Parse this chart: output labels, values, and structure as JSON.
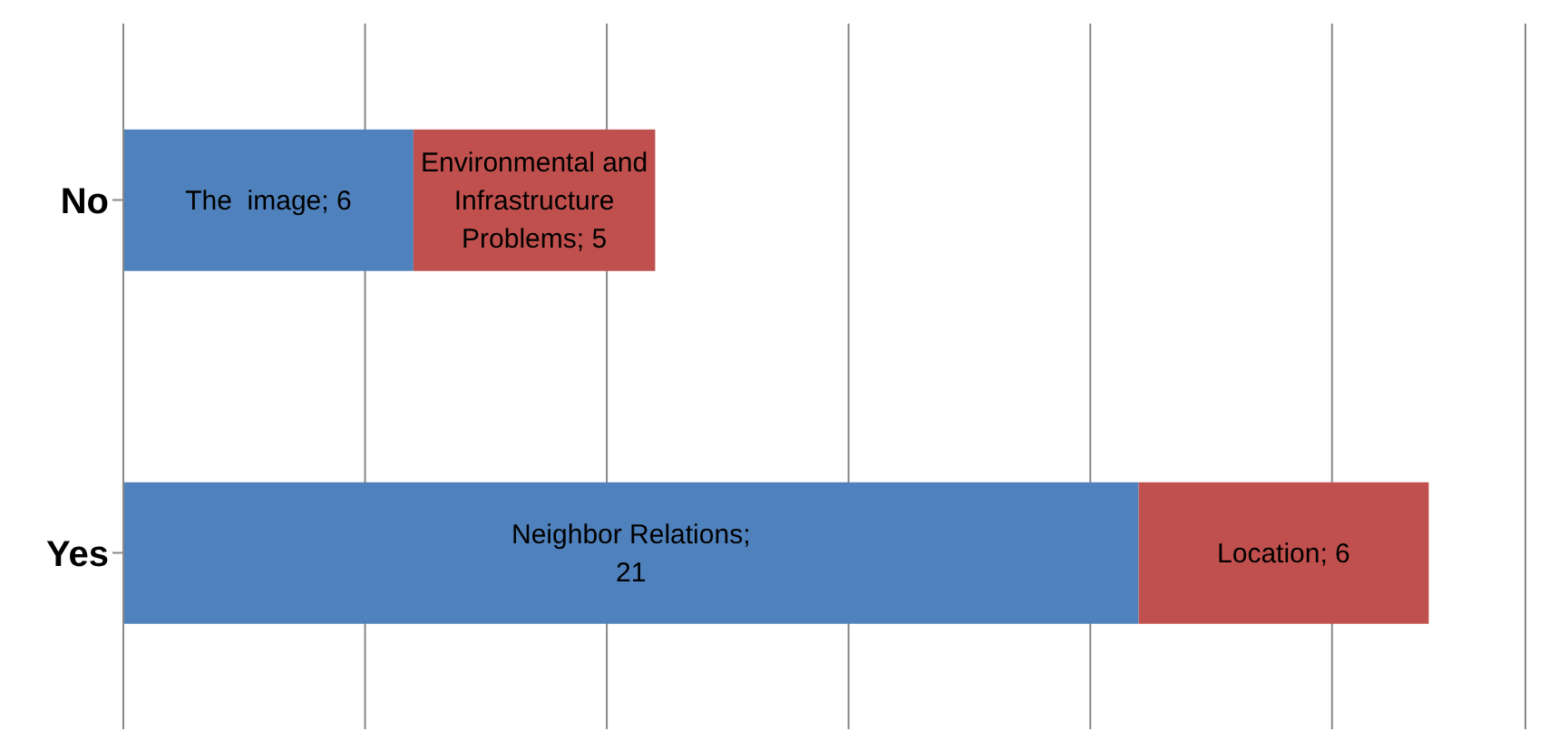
{
  "chart_data": {
    "type": "bar",
    "orientation": "horizontal",
    "stacked": true,
    "categories": [
      "No",
      "Yes"
    ],
    "series": [
      {
        "color": "#4f81bd",
        "values": [
          6,
          21
        ],
        "value_labels": [
          "The  image; 6",
          "Neighbor Relations; 21"
        ]
      },
      {
        "color": "#c0504d",
        "values": [
          5,
          6
        ],
        "value_labels": [
          "Environmental and Infrastructure Problems; 5",
          "Location; 6"
        ]
      }
    ],
    "xlim": [
      0,
      29
    ],
    "xticks": [
      {
        "value": 0,
        "label": null
      },
      {
        "value": 5,
        "label": null
      },
      {
        "value": 10,
        "label": null
      },
      {
        "value": 15,
        "label": null
      },
      {
        "value": 20,
        "label": null
      },
      {
        "value": 25,
        "label": null
      }
    ],
    "tick_labels": "y",
    "grid": "x"
  }
}
